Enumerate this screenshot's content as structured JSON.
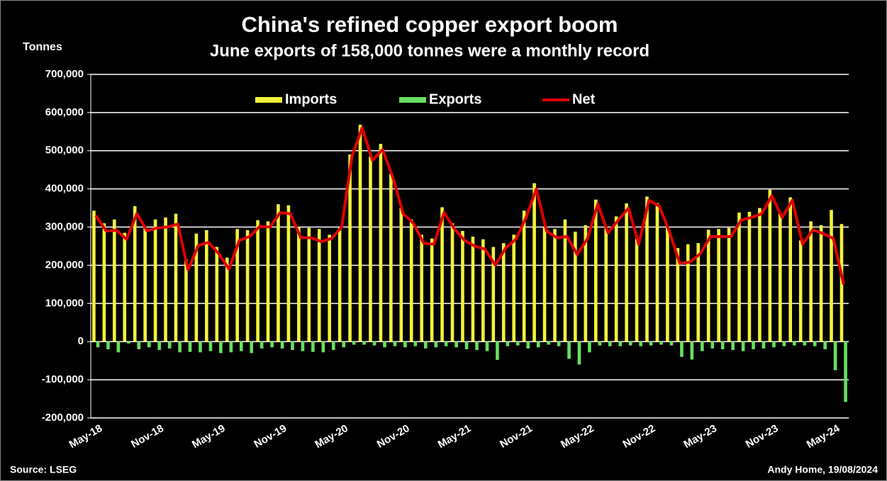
{
  "chart_data": {
    "type": "bar",
    "title": "China's refined copper export boom",
    "subtitle": "June exports of 158,000 tonnes were a monthly record",
    "y_axis_label": "Tonnes",
    "source": "Source: LSEG",
    "credit": "Andy Home, 19/08/2024",
    "legend": "top",
    "grid": true,
    "categories": [
      "May-18",
      null,
      null,
      null,
      null,
      null,
      "Nov-18",
      null,
      null,
      null,
      null,
      null,
      "May-19",
      null,
      null,
      null,
      null,
      null,
      "Nov-19",
      null,
      null,
      null,
      null,
      null,
      "May-20",
      null,
      null,
      null,
      null,
      null,
      "Nov-20",
      null,
      null,
      null,
      null,
      null,
      "May-21",
      null,
      null,
      null,
      null,
      null,
      "Nov-21",
      null,
      null,
      null,
      null,
      null,
      "May-22",
      null,
      null,
      null,
      null,
      null,
      "Nov-22",
      null,
      null,
      null,
      null,
      null,
      "May-23",
      null,
      null,
      null,
      null,
      null,
      "Nov-23",
      null,
      null,
      null,
      null,
      null,
      "May-24",
      null
    ],
    "ylim": [
      -200000,
      700000
    ],
    "yticks": [
      {
        "value": -200000,
        "label": "-200,000"
      },
      {
        "value": -100000,
        "label": "-100,000"
      },
      0,
      {
        "value": 100000,
        "label": "100,000"
      },
      {
        "value": 200000,
        "label": "200,000"
      },
      {
        "value": 300000,
        "label": "300,000"
      },
      {
        "value": 400000,
        "label": "400,000"
      },
      {
        "value": 500000,
        "label": "500,000"
      },
      {
        "value": 600000,
        "label": "600,000"
      },
      {
        "value": 700000,
        "label": "700,000"
      }
    ],
    "series": [
      {
        "name": "Imports",
        "type": "bar",
        "color": "#f2f23c",
        "values": [
          343000,
          310000,
          320000,
          285000,
          355000,
          300000,
          320000,
          325000,
          335000,
          215000,
          283000,
          292000,
          248000,
          220000,
          295000,
          292000,
          318000,
          315000,
          360000,
          357000,
          300000,
          298000,
          295000,
          280000,
          300000,
          490000,
          568000,
          485000,
          518000,
          440000,
          350000,
          320000,
          280000,
          270000,
          352000,
          310000,
          290000,
          275000,
          268000,
          248000,
          258000,
          280000,
          343000,
          415000,
          300000,
          295000,
          320000,
          288000,
          305000,
          372000,
          300000,
          328000,
          362000,
          270000,
          380000,
          363000,
          300000,
          245000,
          255000,
          258000,
          293000,
          295000,
          298000,
          338000,
          340000,
          350000,
          398000,
          335000,
          378000,
          265000,
          315000,
          305000,
          345000,
          308000
        ]
      },
      {
        "name": "Exports",
        "type": "bar",
        "color": "#66e060",
        "values": [
          -15000,
          -20000,
          -28000,
          -5000,
          -20000,
          -15000,
          -22000,
          -18000,
          -28000,
          -27000,
          -28000,
          -25000,
          -30000,
          -28000,
          -25000,
          -30000,
          -18000,
          -15000,
          -18000,
          -22000,
          -25000,
          -27000,
          -28000,
          -22000,
          -15000,
          -8000,
          -8000,
          -10000,
          -15000,
          -12000,
          -15000,
          -12000,
          -18000,
          -15000,
          -12000,
          -15000,
          -20000,
          -22000,
          -25000,
          -48000,
          -12000,
          -10000,
          -18000,
          -15000,
          -8000,
          -12000,
          -45000,
          -60000,
          -28000,
          -10000,
          -12000,
          -12000,
          -10000,
          -12000,
          -10000,
          -8000,
          -10000,
          -40000,
          -47000,
          -25000,
          -18000,
          -20000,
          -22000,
          -25000,
          -20000,
          -18000,
          -15000,
          -12000,
          -10000,
          -10000,
          -12000,
          -20000,
          -75000,
          -158000
        ]
      },
      {
        "name": "Net",
        "type": "line",
        "color": "#e00000",
        "values": [
          330000,
          290000,
          292000,
          268000,
          335000,
          290000,
          298000,
          300000,
          308000,
          188000,
          252000,
          260000,
          230000,
          190000,
          265000,
          275000,
          302000,
          300000,
          338000,
          335000,
          272000,
          272000,
          262000,
          270000,
          300000,
          485000,
          560000,
          475000,
          503000,
          430000,
          335000,
          310000,
          258000,
          255000,
          338000,
          295000,
          265000,
          250000,
          242000,
          200000,
          245000,
          268000,
          325000,
          400000,
          290000,
          272000,
          275000,
          228000,
          270000,
          360000,
          285000,
          318000,
          350000,
          255000,
          370000,
          355000,
          288000,
          205000,
          208000,
          230000,
          275000,
          275000,
          275000,
          318000,
          325000,
          335000,
          382000,
          325000,
          370000,
          255000,
          293000,
          283000,
          270000,
          150000
        ]
      }
    ]
  }
}
